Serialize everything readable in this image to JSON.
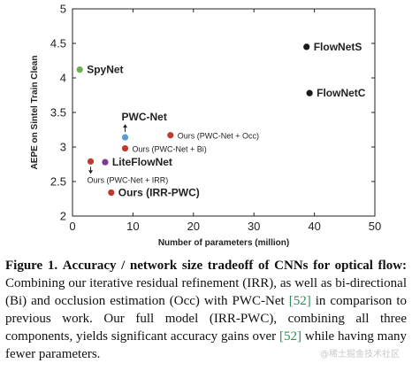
{
  "chart_data": {
    "type": "scatter",
    "title": "",
    "xlabel": "Number of parameters (million)",
    "ylabel": "AEPE on Sintel Train Clean",
    "xlim": [
      0,
      50
    ],
    "ylim": [
      2,
      5
    ],
    "xticks": [
      "0",
      "10",
      "20",
      "30",
      "40",
      "50"
    ],
    "yticks": [
      "2",
      "2.5",
      "3",
      "3.5",
      "4",
      "4.5",
      "5"
    ],
    "grid": false,
    "points": [
      {
        "label": "FlowNetS",
        "x": 38.7,
        "y": 4.45,
        "color": "#1a1a1a",
        "style": "big",
        "anchor": "right"
      },
      {
        "label": "FlowNetC",
        "x": 39.2,
        "y": 3.78,
        "color": "#1a1a1a",
        "style": "big",
        "anchor": "right"
      },
      {
        "label": "SpyNet",
        "x": 1.2,
        "y": 4.12,
        "color": "#6ab04c",
        "style": "big",
        "anchor": "right"
      },
      {
        "label": "PWC-Net",
        "x": 8.7,
        "y": 3.14,
        "color": "#5b9bd5",
        "style": "big",
        "anchor": "above"
      },
      {
        "label": "Ours (PWC-Net + Occ)",
        "x": 16.2,
        "y": 3.17,
        "color": "#c0392b",
        "style": "small",
        "anchor": "right"
      },
      {
        "label": "Ours (PWC-Net + Bi)",
        "x": 8.7,
        "y": 2.98,
        "color": "#c0392b",
        "style": "small",
        "anchor": "right"
      },
      {
        "label": "LiteFlowNet",
        "x": 5.4,
        "y": 2.78,
        "color": "#7d3c98",
        "style": "big",
        "anchor": "right"
      },
      {
        "label": "Ours (PWC-Net + IRR)",
        "x": 3.0,
        "y": 2.79,
        "color": "#c0392b",
        "style": "small",
        "anchor": "below"
      },
      {
        "label": "Ours (IRR-PWC)",
        "x": 6.4,
        "y": 2.34,
        "color": "#c0392b",
        "style": "big",
        "anchor": "right"
      }
    ]
  },
  "caption": {
    "head": "Figure 1.",
    "bold": "Accuracy / network size tradeoff of CNNs for optical flow:",
    "text_1": "Combining our iterative residual refinement (IRR), as well as bi-directional (Bi) and occlusion estimation (Occ) with PWC-Net",
    "cite_1": "[52]",
    "text_2": "in comparison to previous work.  Our full model (IRR-PWC), combining all three components, yields significant accuracy gains over",
    "cite_2": "[52]",
    "text_3": "while having many fewer parameters."
  },
  "watermark": "@稀土掘金技术社区"
}
